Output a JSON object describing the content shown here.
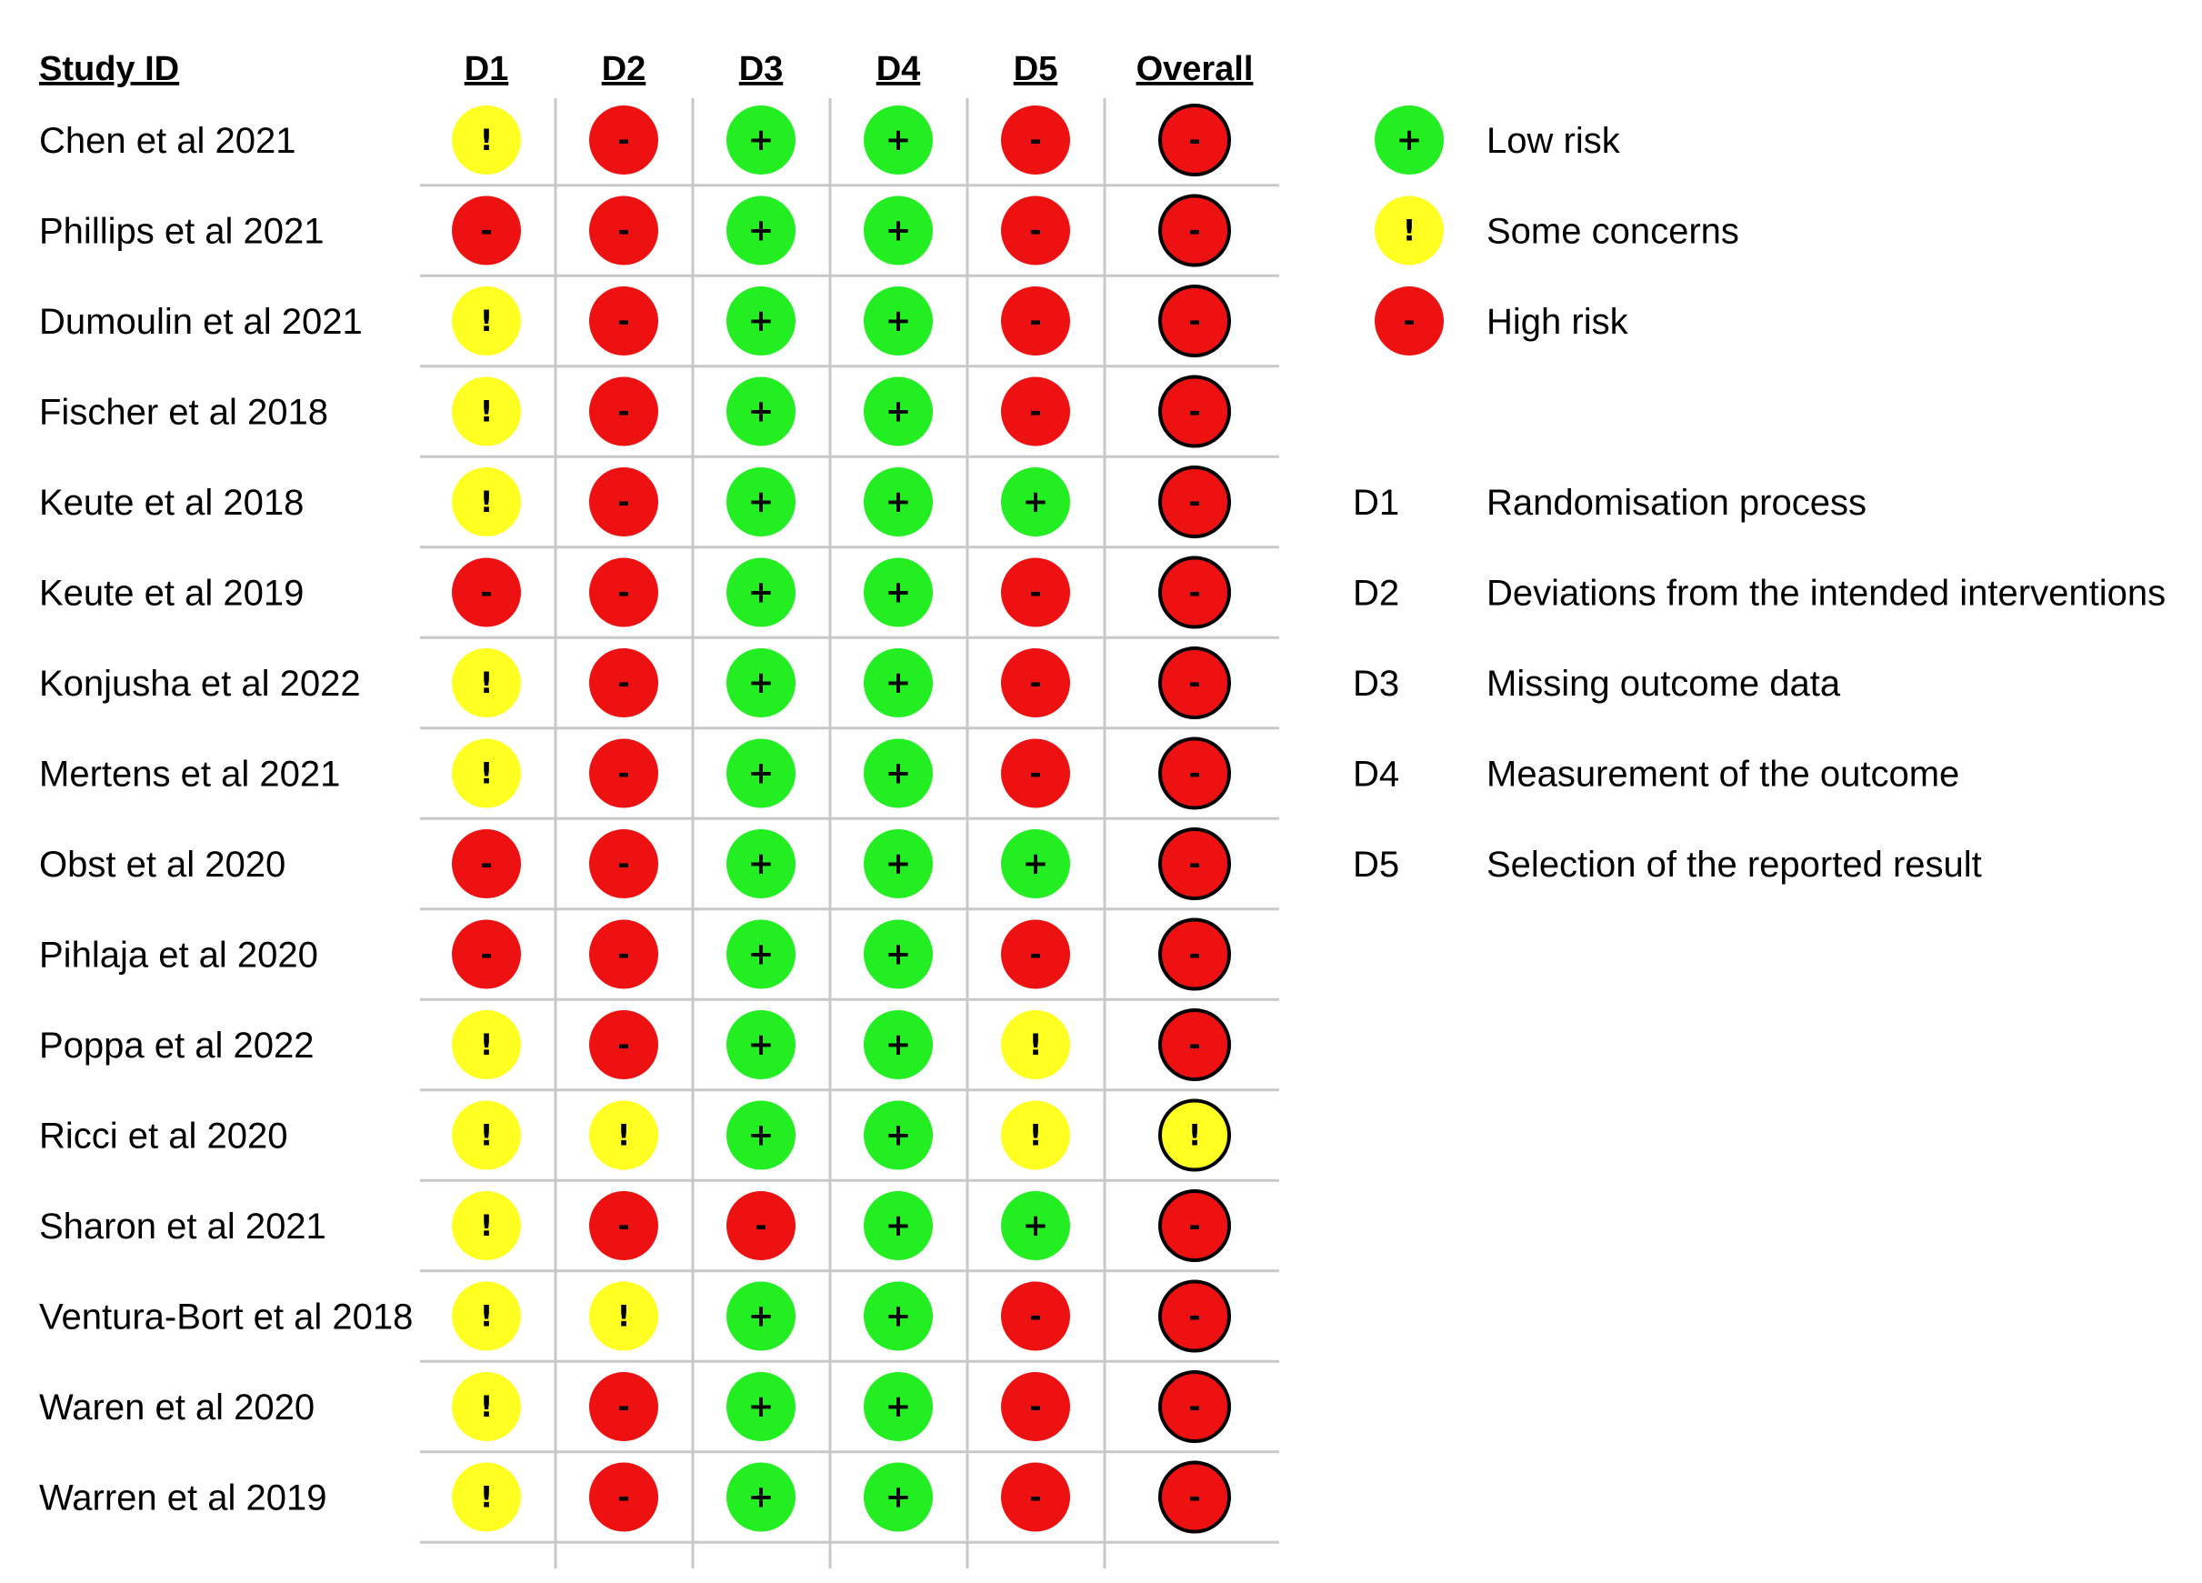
{
  "chart_data": {
    "type": "table",
    "headers": {
      "study_id": "Study ID",
      "domains": [
        "D1",
        "D2",
        "D3",
        "D4",
        "D5"
      ],
      "overall": "Overall"
    },
    "symbols": {
      "low": "+",
      "some": "!",
      "high": "-"
    },
    "colors": {
      "low": "#22ee22",
      "some": "#ffff22",
      "high": "#ee1111",
      "grid": "#c8c8c8"
    },
    "studies": [
      {
        "id": "Chen et al 2021",
        "d": [
          "some",
          "high",
          "low",
          "low",
          "high"
        ],
        "overall": "high"
      },
      {
        "id": "Phillips et al 2021",
        "d": [
          "high",
          "high",
          "low",
          "low",
          "high"
        ],
        "overall": "high"
      },
      {
        "id": "Dumoulin et al 2021",
        "d": [
          "some",
          "high",
          "low",
          "low",
          "high"
        ],
        "overall": "high"
      },
      {
        "id": "Fischer et al 2018",
        "d": [
          "some",
          "high",
          "low",
          "low",
          "high"
        ],
        "overall": "high"
      },
      {
        "id": "Keute et al 2018",
        "d": [
          "some",
          "high",
          "low",
          "low",
          "low"
        ],
        "overall": "high"
      },
      {
        "id": "Keute et al 2019",
        "d": [
          "high",
          "high",
          "low",
          "low",
          "high"
        ],
        "overall": "high"
      },
      {
        "id": "Konjusha et al 2022",
        "d": [
          "some",
          "high",
          "low",
          "low",
          "high"
        ],
        "overall": "high"
      },
      {
        "id": "Mertens et al 2021",
        "d": [
          "some",
          "high",
          "low",
          "low",
          "high"
        ],
        "overall": "high"
      },
      {
        "id": "Obst et al 2020",
        "d": [
          "high",
          "high",
          "low",
          "low",
          "low"
        ],
        "overall": "high"
      },
      {
        "id": "Pihlaja et al 2020",
        "d": [
          "high",
          "high",
          "low",
          "low",
          "high"
        ],
        "overall": "high"
      },
      {
        "id": "Poppa et al 2022",
        "d": [
          "some",
          "high",
          "low",
          "low",
          "some"
        ],
        "overall": "high"
      },
      {
        "id": "Ricci et al 2020",
        "d": [
          "some",
          "some",
          "low",
          "low",
          "some"
        ],
        "overall": "some"
      },
      {
        "id": "Sharon et al 2021",
        "d": [
          "some",
          "high",
          "high",
          "low",
          "low"
        ],
        "overall": "high"
      },
      {
        "id": "Ventura-Bort et al 2018",
        "d": [
          "some",
          "some",
          "low",
          "low",
          "high"
        ],
        "overall": "high"
      },
      {
        "id": "Waren et al 2020",
        "d": [
          "some",
          "high",
          "low",
          "low",
          "high"
        ],
        "overall": "high"
      },
      {
        "id": "Warren et al 2019",
        "d": [
          "some",
          "high",
          "low",
          "low",
          "high"
        ],
        "overall": "high"
      }
    ],
    "legend": {
      "risk": [
        {
          "level": "low",
          "label": "Low risk"
        },
        {
          "level": "some",
          "label": "Some concerns"
        },
        {
          "level": "high",
          "label": "High risk"
        }
      ],
      "domains": [
        {
          "code": "D1",
          "label": "Randomisation process"
        },
        {
          "code": "D2",
          "label": "Deviations from the intended interventions"
        },
        {
          "code": "D3",
          "label": "Missing outcome data"
        },
        {
          "code": "D4",
          "label": "Measurement of the outcome"
        },
        {
          "code": "D5",
          "label": "Selection of the reported result"
        }
      ]
    }
  }
}
